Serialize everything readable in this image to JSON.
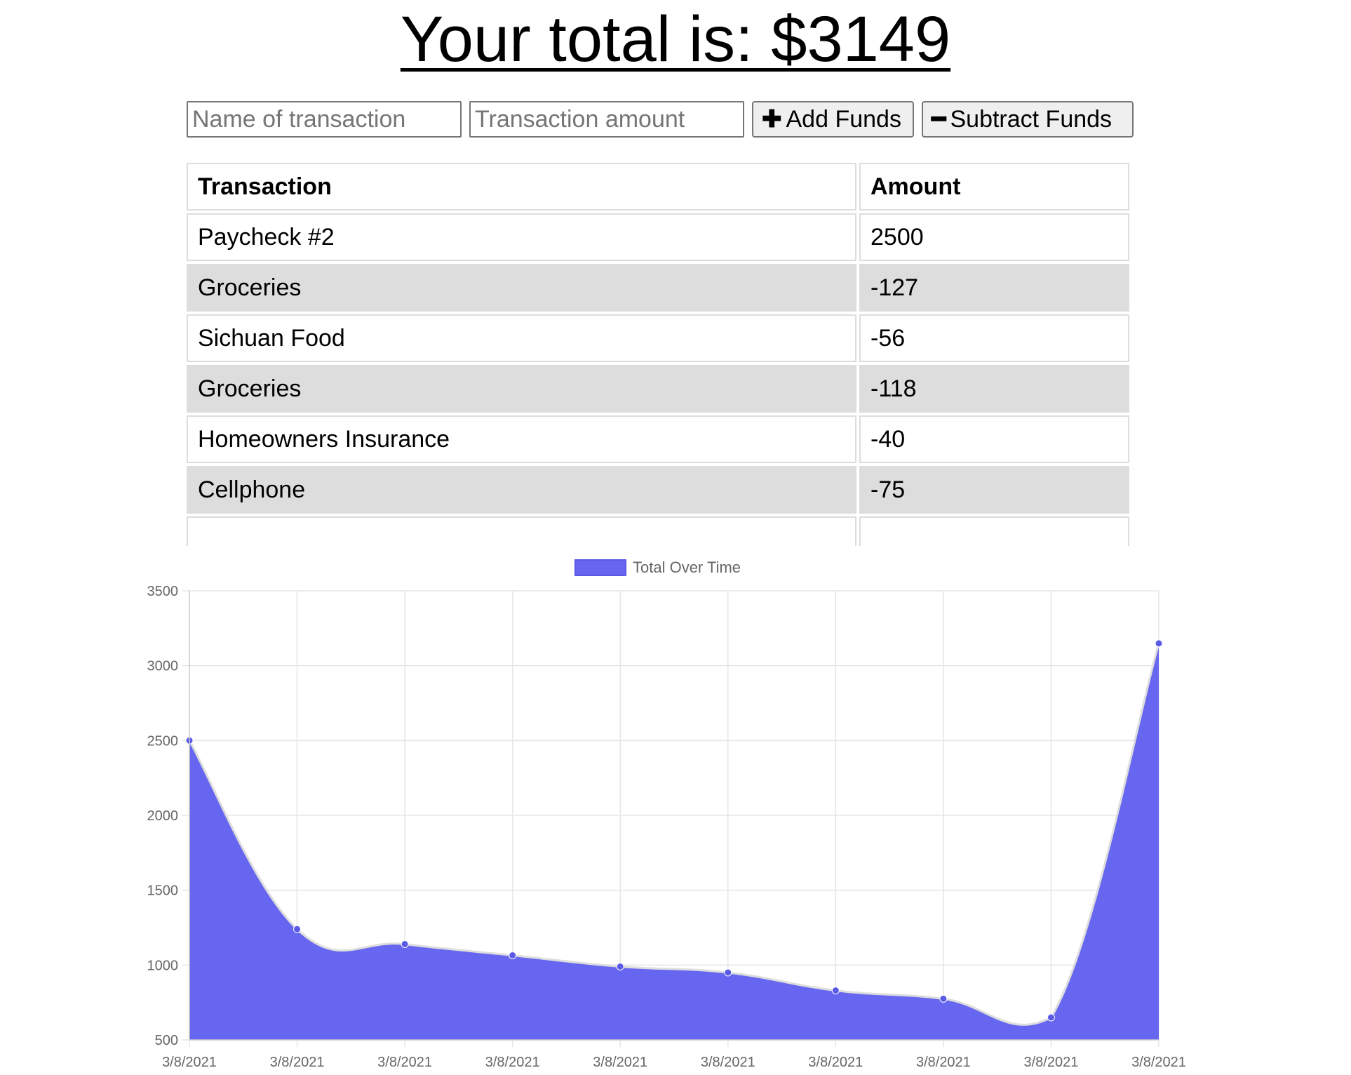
{
  "header": {
    "total_label": "Your total is: $3149"
  },
  "form": {
    "name_placeholder": "Name of transaction",
    "amount_placeholder": "Transaction amount",
    "add_label": "Add Funds",
    "subtract_label": "Subtract Funds",
    "add_icon": "plus-icon",
    "subtract_icon": "minus-icon"
  },
  "table": {
    "headers": [
      "Transaction",
      "Amount"
    ],
    "rows": [
      {
        "name": "Paycheck #2",
        "amount": "2500"
      },
      {
        "name": "Groceries",
        "amount": "-127"
      },
      {
        "name": "Sichuan Food",
        "amount": "-56"
      },
      {
        "name": "Groceries",
        "amount": "-118"
      },
      {
        "name": "Homeowners Insurance",
        "amount": "-40"
      },
      {
        "name": "Cellphone",
        "amount": "-75"
      }
    ]
  },
  "chart_data": {
    "type": "area",
    "legend": "Total Over Time",
    "legend_placement": "top-center",
    "x": [
      "3/8/2021",
      "3/8/2021",
      "3/8/2021",
      "3/8/2021",
      "3/8/2021",
      "3/8/2021",
      "3/8/2021",
      "3/8/2021",
      "3/8/2021",
      "3/8/2021"
    ],
    "series": [
      {
        "name": "Total Over Time",
        "values": [
          2500,
          1240,
          1140,
          1065,
          990,
          950,
          830,
          775,
          650,
          3149
        ]
      }
    ],
    "ylim": [
      500,
      3500
    ],
    "yticks": [
      500,
      1000,
      1500,
      2000,
      2500,
      3000,
      3500
    ],
    "grid": true,
    "fill_color": "#6666f0",
    "line_color": "#dddddd",
    "point_color": "#5a5ae6"
  }
}
